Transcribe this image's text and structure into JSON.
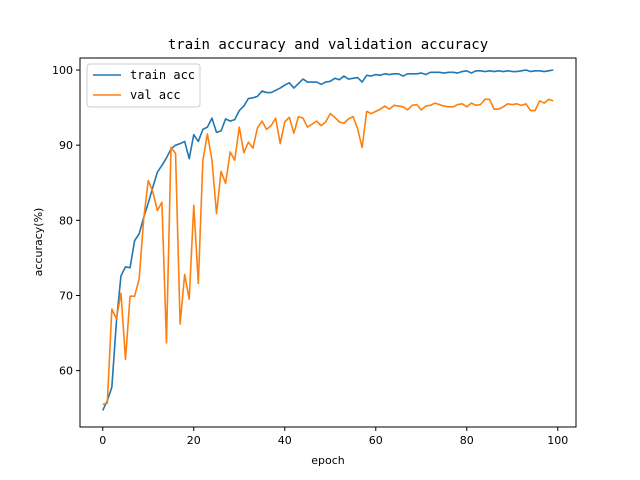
{
  "chart_data": {
    "type": "line",
    "title": "train accuracy and validation accuracy",
    "xlabel": "epoch",
    "ylabel": "accuracy(%)",
    "xlim": [
      -5,
      104
    ],
    "ylim": [
      52.5,
      101.6
    ],
    "xticks": [
      0,
      20,
      40,
      60,
      80,
      100
    ],
    "yticks": [
      60,
      70,
      80,
      90,
      100
    ],
    "grid": false,
    "legend_position": "top-left",
    "x": [
      0,
      1,
      2,
      3,
      4,
      5,
      6,
      7,
      8,
      9,
      10,
      11,
      12,
      13,
      14,
      15,
      16,
      17,
      18,
      19,
      20,
      21,
      22,
      23,
      24,
      25,
      26,
      27,
      28,
      29,
      30,
      31,
      32,
      33,
      34,
      35,
      36,
      37,
      38,
      39,
      40,
      41,
      42,
      43,
      44,
      45,
      46,
      47,
      48,
      49,
      50,
      51,
      52,
      53,
      54,
      55,
      56,
      57,
      58,
      59,
      60,
      61,
      62,
      63,
      64,
      65,
      66,
      67,
      68,
      69,
      70,
      71,
      72,
      73,
      74,
      75,
      76,
      77,
      78,
      79,
      80,
      81,
      82,
      83,
      84,
      85,
      86,
      87,
      88,
      89,
      90,
      91,
      92,
      93,
      94,
      95,
      96,
      97,
      98,
      99
    ],
    "series": [
      {
        "name": "train acc",
        "color": "#1f77b4",
        "values": [
          54.7,
          56.0,
          57.8,
          66.5,
          72.6,
          73.8,
          73.7,
          77.3,
          78.2,
          80.4,
          82.3,
          84.4,
          86.4,
          87.3,
          88.3,
          89.5,
          90.0,
          90.2,
          90.5,
          88.2,
          91.4,
          90.5,
          92.1,
          92.4,
          93.6,
          91.7,
          91.9,
          93.5,
          93.2,
          93.4,
          94.6,
          95.2,
          96.2,
          96.3,
          96.5,
          97.2,
          97.0,
          97.0,
          97.3,
          97.6,
          98.0,
          98.3,
          97.6,
          98.2,
          98.8,
          98.4,
          98.4,
          98.4,
          98.1,
          98.4,
          98.5,
          98.9,
          98.7,
          99.2,
          98.8,
          98.9,
          99.0,
          98.4,
          99.3,
          99.2,
          99.4,
          99.3,
          99.5,
          99.4,
          99.5,
          99.5,
          99.2,
          99.5,
          99.5,
          99.5,
          99.6,
          99.4,
          99.7,
          99.7,
          99.7,
          99.6,
          99.7,
          99.7,
          99.6,
          99.8,
          99.9,
          99.6,
          99.9,
          99.9,
          99.8,
          99.9,
          99.8,
          99.9,
          99.8,
          99.9,
          99.8,
          99.8,
          99.9,
          100.0,
          99.8,
          99.9,
          99.9,
          99.8,
          99.9,
          100.0
        ]
      },
      {
        "name": "val acc",
        "color": "#ff7f0e",
        "values": [
          55.5,
          55.7,
          68.2,
          66.9,
          70.3,
          61.5,
          69.9,
          69.9,
          72.2,
          80.2,
          85.3,
          83.8,
          81.3,
          82.4,
          63.7,
          89.7,
          88.9,
          66.2,
          72.8,
          69.5,
          82.0,
          71.6,
          88.0,
          91.5,
          88.0,
          80.9,
          86.5,
          84.9,
          89.1,
          88.0,
          92.4,
          89.0,
          90.4,
          89.6,
          92.3,
          93.2,
          92.1,
          92.6,
          93.6,
          90.2,
          93.1,
          93.7,
          91.6,
          93.8,
          93.6,
          92.4,
          92.8,
          93.2,
          92.6,
          93.1,
          94.2,
          93.7,
          93.1,
          92.9,
          93.5,
          93.8,
          92.2,
          89.7,
          94.5,
          94.2,
          94.5,
          94.8,
          95.2,
          94.8,
          95.3,
          95.2,
          95.1,
          94.7,
          95.3,
          95.4,
          94.7,
          95.2,
          95.3,
          95.6,
          95.4,
          95.2,
          95.1,
          95.1,
          95.4,
          95.5,
          95.1,
          95.6,
          95.3,
          95.4,
          96.1,
          96.1,
          94.8,
          94.8,
          95.1,
          95.5,
          95.4,
          95.5,
          95.3,
          95.5,
          94.6,
          94.6,
          95.9,
          95.6,
          96.1,
          95.9
        ]
      }
    ]
  }
}
